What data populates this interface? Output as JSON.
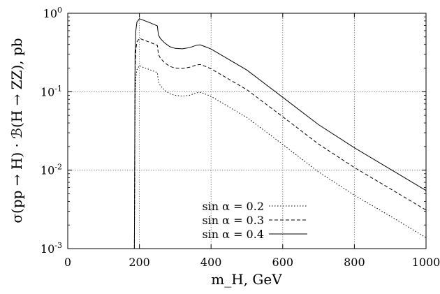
{
  "chart_data": {
    "type": "line",
    "xlabel": "m_H, GeV",
    "ylabel": "σ(pp → H) · ℬ(H → ZZ), pb",
    "xlim": [
      0,
      1000
    ],
    "ylim": [
      0.001,
      1
    ],
    "y_scale": "log",
    "grid": "dotted at x = 200, 400, 600, 800 and y = 10^-1, 10^-2",
    "legend_position": "lower-center",
    "x_ticks": [
      "0",
      "200",
      "400",
      "600",
      "800",
      "1000"
    ],
    "y_ticks": [
      {
        "value": 1,
        "base": "10",
        "exp": "0"
      },
      {
        "value": 0.1,
        "base": "10",
        "exp": "-1"
      },
      {
        "value": 0.01,
        "base": "10",
        "exp": "-2"
      },
      {
        "value": 0.001,
        "base": "10",
        "exp": "-3"
      }
    ],
    "series": [
      {
        "name": "sin α = 0.2",
        "dash": "dotted",
        "points": [
          [
            186,
            0.001
          ],
          [
            188,
            0.08
          ],
          [
            190,
            0.15
          ],
          [
            193,
            0.19
          ],
          [
            200,
            0.215
          ],
          [
            210,
            0.205
          ],
          [
            230,
            0.19
          ],
          [
            250,
            0.175
          ],
          [
            253,
            0.135
          ],
          [
            258,
            0.12
          ],
          [
            270,
            0.105
          ],
          [
            285,
            0.094
          ],
          [
            300,
            0.09
          ],
          [
            320,
            0.088
          ],
          [
            340,
            0.09
          ],
          [
            360,
            0.097
          ],
          [
            370,
            0.098
          ],
          [
            380,
            0.095
          ],
          [
            400,
            0.087
          ],
          [
            500,
            0.047
          ],
          [
            600,
            0.0213
          ],
          [
            700,
            0.0095
          ],
          [
            800,
            0.0048
          ],
          [
            900,
            0.0026
          ],
          [
            1000,
            0.00138
          ]
        ]
      },
      {
        "name": "sin α = 0.3",
        "dash": "dashed",
        "points": [
          [
            186,
            0.001
          ],
          [
            188,
            0.18
          ],
          [
            190,
            0.34
          ],
          [
            193,
            0.43
          ],
          [
            200,
            0.48
          ],
          [
            210,
            0.46
          ],
          [
            230,
            0.425
          ],
          [
            250,
            0.39
          ],
          [
            253,
            0.3
          ],
          [
            258,
            0.27
          ],
          [
            270,
            0.235
          ],
          [
            285,
            0.21
          ],
          [
            300,
            0.2
          ],
          [
            320,
            0.198
          ],
          [
            340,
            0.205
          ],
          [
            360,
            0.22
          ],
          [
            370,
            0.222
          ],
          [
            380,
            0.214
          ],
          [
            400,
            0.196
          ],
          [
            500,
            0.106
          ],
          [
            600,
            0.048
          ],
          [
            700,
            0.0215
          ],
          [
            800,
            0.0108
          ],
          [
            900,
            0.0058
          ],
          [
            1000,
            0.0031
          ]
        ]
      },
      {
        "name": "sin α = 0.4",
        "dash": "solid",
        "points": [
          [
            186,
            0.001
          ],
          [
            188,
            0.32
          ],
          [
            190,
            0.6
          ],
          [
            193,
            0.77
          ],
          [
            200,
            0.85
          ],
          [
            210,
            0.82
          ],
          [
            230,
            0.755
          ],
          [
            250,
            0.69
          ],
          [
            253,
            0.53
          ],
          [
            258,
            0.48
          ],
          [
            270,
            0.42
          ],
          [
            285,
            0.375
          ],
          [
            300,
            0.357
          ],
          [
            320,
            0.352
          ],
          [
            340,
            0.365
          ],
          [
            360,
            0.392
          ],
          [
            370,
            0.395
          ],
          [
            380,
            0.381
          ],
          [
            400,
            0.35
          ],
          [
            500,
            0.189
          ],
          [
            600,
            0.085
          ],
          [
            700,
            0.038
          ],
          [
            800,
            0.0193
          ],
          [
            900,
            0.0103
          ],
          [
            1000,
            0.0055
          ]
        ]
      }
    ]
  }
}
